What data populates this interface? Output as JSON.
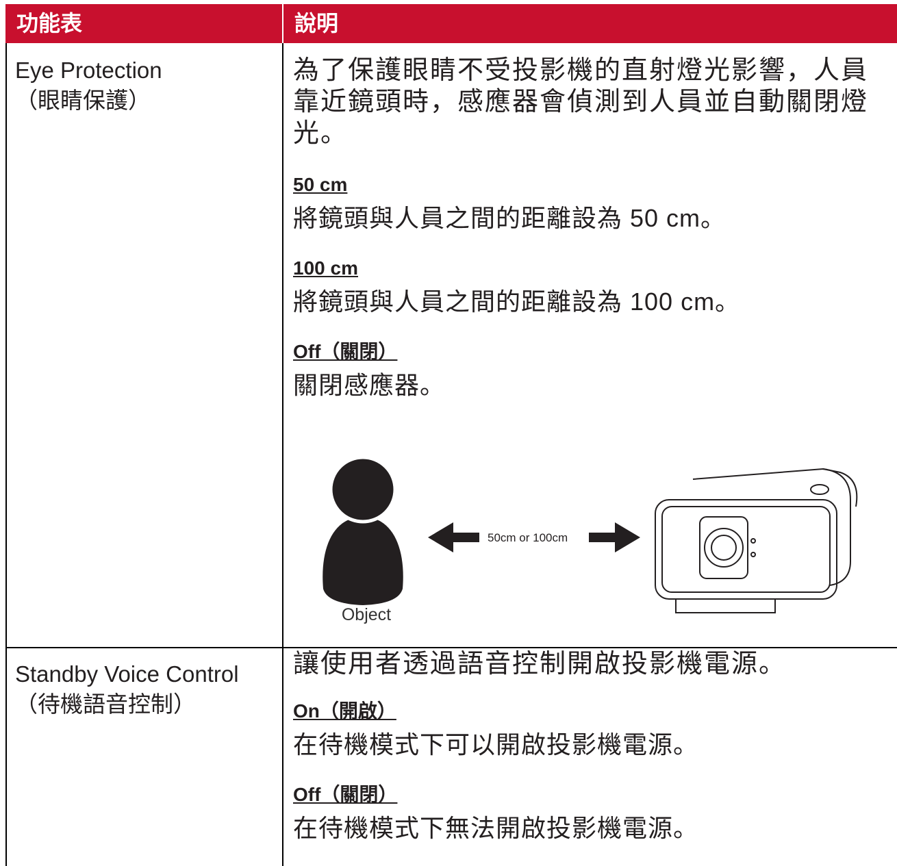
{
  "table": {
    "header": [
      "功能表",
      "說明"
    ],
    "rows": [
      {
        "feature": [
          "Eye Protection",
          "（眼睛保護）"
        ],
        "description": "為了保護眼睛不受投影機的直射燈光影響，人員靠近鏡頭時，感應器會偵測到人員並自動關閉燈光。",
        "options": [
          {
            "label": "50 cm",
            "text": "將鏡頭與人員之間的距離設為 50 cm。"
          },
          {
            "label": "100 cm",
            "text": "將鏡頭與人員之間的距離設為 100 cm。"
          },
          {
            "label": "Off（關閉）",
            "text": "關閉感應器。"
          }
        ],
        "figure": {
          "distance_label": "50cm or 100cm",
          "object_label": "Object"
        }
      },
      {
        "feature": [
          "Standby Voice Control",
          "（待機語音控制）"
        ],
        "description": "讓使用者透過語音控制開啟投影機電源。",
        "options": [
          {
            "label": "On（開啟）",
            "text": "在待機模式下可以開啟投影機電源。"
          },
          {
            "label": "Off（關閉）",
            "text": "在待機模式下無法開啟投影機電源。"
          }
        ]
      }
    ]
  }
}
